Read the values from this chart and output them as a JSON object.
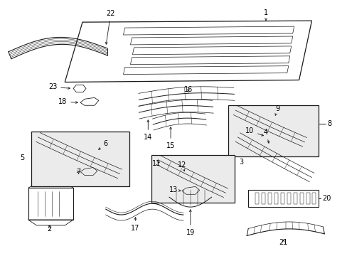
{
  "bg": "#ffffff",
  "lc": "#1a1a1a",
  "box_fc": "#ebebeb",
  "figsize": [
    4.89,
    3.6
  ],
  "dpi": 100
}
